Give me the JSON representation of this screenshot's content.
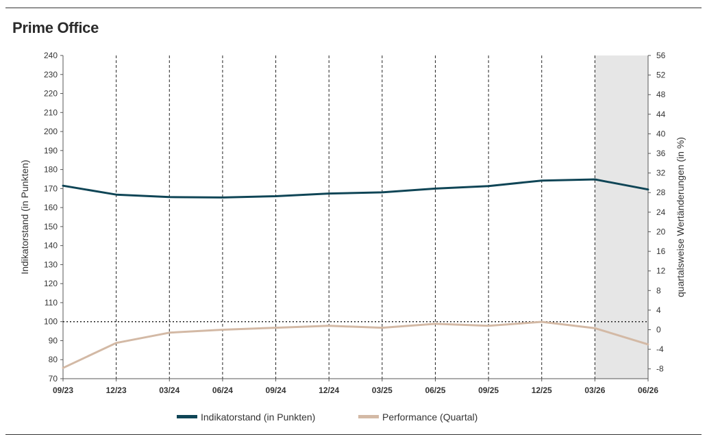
{
  "title": "Prime Office",
  "chart_data": {
    "type": "line",
    "title": "Prime Office",
    "x": [
      "09/23",
      "12/23",
      "03/24",
      "06/24",
      "09/24",
      "12/24",
      "03/25",
      "06/25",
      "09/25",
      "12/25",
      "03/26",
      "06/26"
    ],
    "series": [
      {
        "name": "Indikatorstand (in Punkten)",
        "axis": "left",
        "color": "#0f4556",
        "values": [
          171.5,
          166.8,
          165.5,
          165.3,
          166.0,
          167.4,
          168.0,
          170.0,
          171.3,
          174.2,
          174.8,
          169.5
        ]
      },
      {
        "name": "Performance (Quartal)",
        "axis": "right",
        "color": "#d3b9a5",
        "values": [
          -7.8,
          -2.7,
          -0.6,
          0.0,
          0.4,
          0.8,
          0.4,
          1.2,
          0.8,
          1.6,
          0.3,
          -3.0
        ]
      }
    ],
    "y_left": {
      "label": "Indikatorstand (in Punkten)",
      "min": 70,
      "max": 240,
      "step": 10
    },
    "y_right": {
      "label": "quartalsweise Wertänderungen (in %)",
      "min": -10,
      "max": 56,
      "ticks": [
        -8,
        -4,
        0,
        4,
        8,
        12,
        16,
        20,
        24,
        28,
        32,
        36,
        40,
        44,
        48,
        52,
        56
      ]
    },
    "reference_line": {
      "axis": "left",
      "value": 100,
      "style": "dotted"
    },
    "vertical_gridlines": "dashed",
    "forecast_shading": {
      "from": "03/26",
      "to": "06/26",
      "color": "#e6e6e6"
    },
    "legend_position": "bottom-center"
  }
}
